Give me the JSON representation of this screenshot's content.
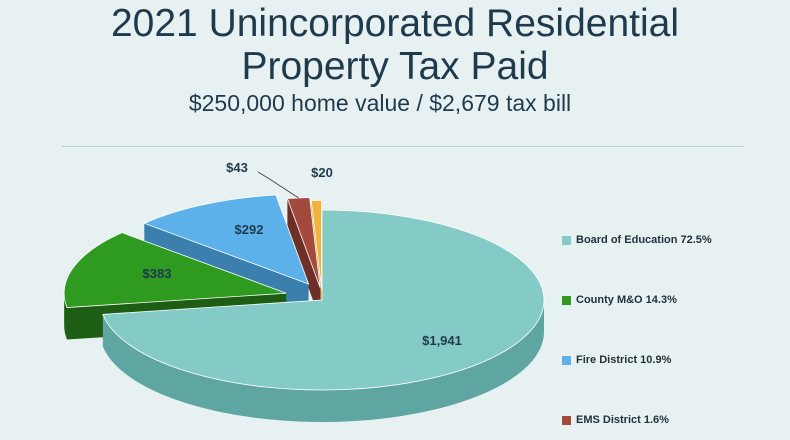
{
  "chart_data": {
    "type": "pie",
    "title_line1": "2021 Unincorporated Residential",
    "title_line2": "Property Tax Paid",
    "subtitle": "$250,000 home value / $2,679 tax bill",
    "slices": [
      {
        "label": "Board of Education",
        "percent": "72.5%",
        "value": 1941,
        "value_label": "$1,941",
        "color": "#84cbc7",
        "side": "#5fa6a2",
        "exploded": false,
        "legend": true
      },
      {
        "label": "County M&O",
        "percent": "14.3%",
        "value": 383,
        "value_label": "$383",
        "color": "#2e9a1f",
        "side": "#1d5e14",
        "exploded": true,
        "legend": true
      },
      {
        "label": "Fire District",
        "percent": "10.9%",
        "value": 292,
        "value_label": "$292",
        "color": "#5cb1ea",
        "side": "#3a7fae",
        "exploded": true,
        "legend": true
      },
      {
        "label": "EMS District",
        "percent": "1.6%",
        "value": 43,
        "value_label": "$43",
        "color": "#a34a3d",
        "side": "#6d2f26",
        "exploded": true,
        "legend": true
      },
      {
        "label": "",
        "percent": "",
        "value": 20,
        "value_label": "$20",
        "color": "#f0b43c",
        "side": "#b8841f",
        "exploded": true,
        "legend": false
      }
    ],
    "legend_position": "right"
  }
}
